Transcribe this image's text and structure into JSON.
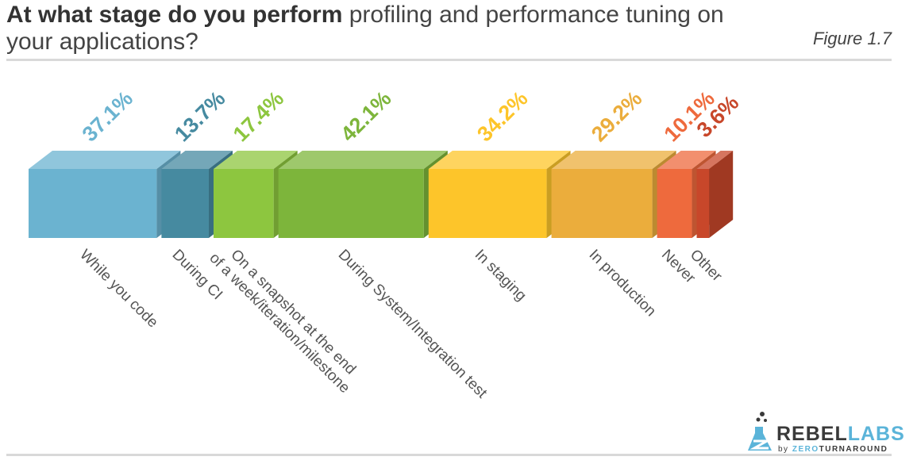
{
  "title": {
    "bold": "At what stage do you perform",
    "rest": " profiling and performance tuning on your applications?"
  },
  "figure_label": "Figure 1.7",
  "logo": {
    "name_part1": "REBEL",
    "name_part2": "LABS",
    "tag_by": "by ",
    "tag_zero": "ZERO",
    "tag_turnaround": "TURNAROUND"
  },
  "chart_data": {
    "type": "bar",
    "title": "At what stage do you perform profiling and performance tuning on your applications?",
    "categories": [
      "While you code",
      "During CI",
      "On a snapshot at the end of a week/iteration/milestone",
      "During System/Integration test",
      "In staging",
      "In production",
      "Never",
      "Other"
    ],
    "category_lines": [
      [
        "While you code"
      ],
      [
        "During CI"
      ],
      [
        "On a snapshot at the end",
        "of a week/iteration/milestone"
      ],
      [
        "During System/Integration test"
      ],
      [
        "In staging"
      ],
      [
        "In production"
      ],
      [
        "Never"
      ],
      [
        "Other"
      ]
    ],
    "values": [
      37.1,
      13.7,
      17.4,
      42.1,
      34.2,
      29.2,
      10.1,
      3.6
    ],
    "value_labels": [
      "37.1%",
      "13.7%",
      "17.4%",
      "42.1%",
      "34.2%",
      "29.2%",
      "10.1%",
      "3.6%"
    ],
    "colors": [
      "#6bb3d0",
      "#468aa0",
      "#8dc63f",
      "#7db53b",
      "#fdc52a",
      "#ebad3c",
      "#ee6a3d",
      "#c8472a"
    ],
    "label_colors": [
      "#6bb3d0",
      "#468aa0",
      "#8dc63f",
      "#7db53b",
      "#fdc52a",
      "#ebad3c",
      "#ee6a3d",
      "#c8472a"
    ],
    "encoding": "bar width proportional to value, 3D blocks",
    "grid": false,
    "legend": "none"
  }
}
